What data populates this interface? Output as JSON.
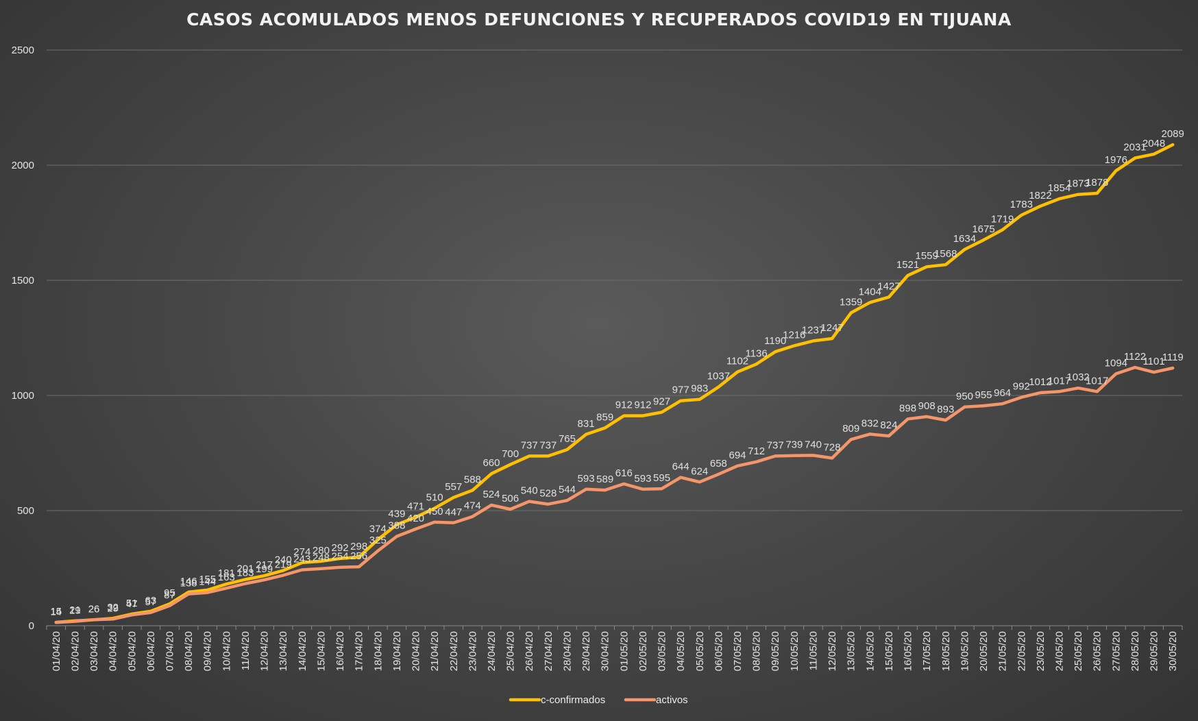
{
  "chart_data": {
    "type": "line",
    "title": "CASOS ACOMULADOS MENOS DEFUNCIONES Y RECUPERADOS COVID19 EN TIJUANA",
    "xlabel": "",
    "ylabel": "",
    "ylim": [
      0,
      2500
    ],
    "yticks": [
      0,
      500,
      1000,
      1500,
      2000,
      2500
    ],
    "grid": true,
    "legend_position": "bottom",
    "categories": [
      "01/04/20",
      "02/04/20",
      "03/04/20",
      "04/04/20",
      "05/04/20",
      "06/04/20",
      "07/04/20",
      "08/04/20",
      "09/04/20",
      "10/04/20",
      "11/04/20",
      "12/04/20",
      "13/04/20",
      "14/04/20",
      "15/04/20",
      "16/04/20",
      "17/04/20",
      "18/04/20",
      "19/04/20",
      "20/04/20",
      "21/04/20",
      "22/04/20",
      "23/04/20",
      "24/04/20",
      "25/04/20",
      "26/04/20",
      "27/04/20",
      "28/04/20",
      "29/04/20",
      "30/04/20",
      "01/05/20",
      "02/05/20",
      "03/05/20",
      "04/05/20",
      "05/05/20",
      "06/05/20",
      "07/05/20",
      "08/05/20",
      "09/05/20",
      "10/05/20",
      "11/05/20",
      "12/05/20",
      "13/05/20",
      "14/05/20",
      "15/05/20",
      "16/05/20",
      "17/05/20",
      "18/05/20",
      "19/05/20",
      "20/05/20",
      "21/05/20",
      "22/05/20",
      "23/05/20",
      "24/05/20",
      "25/05/20",
      "26/05/20",
      "27/05/20",
      "28/05/20",
      "29/05/20",
      "30/05/20"
    ],
    "series": [
      {
        "name": "c-confirmados",
        "color": "#FFC000",
        "values": [
          15,
          21,
          26,
          32,
          51,
          63,
          95,
          146,
          155,
          181,
          201,
          217,
          240,
          274,
          280,
          292,
          298,
          374,
          439,
          471,
          510,
          557,
          588,
          660,
          700,
          737,
          737,
          765,
          831,
          859,
          912,
          912,
          927,
          977,
          983,
          1037,
          1102,
          1136,
          1190,
          1216,
          1237,
          1247,
          1359,
          1404,
          1427,
          1521,
          1559,
          1568,
          1634,
          1675,
          1719,
          1783,
          1822,
          1854,
          1873,
          1878,
          1976,
          2031,
          2048,
          2089
        ]
      },
      {
        "name": "activos",
        "color": "#F4956A",
        "values": [
          14,
          19,
          26,
          29,
          47,
          57,
          87,
          138,
          144,
          163,
          183,
          199,
          219,
          243,
          248,
          254,
          256,
          325,
          388,
          420,
          450,
          447,
          474,
          524,
          506,
          540,
          528,
          544,
          593,
          589,
          616,
          593,
          595,
          644,
          624,
          658,
          694,
          712,
          737,
          739,
          740,
          728,
          809,
          832,
          824,
          898,
          908,
          893,
          950,
          955,
          964,
          992,
          1012,
          1017,
          1032,
          1017,
          1094,
          1122,
          1101,
          1119
        ]
      }
    ]
  }
}
